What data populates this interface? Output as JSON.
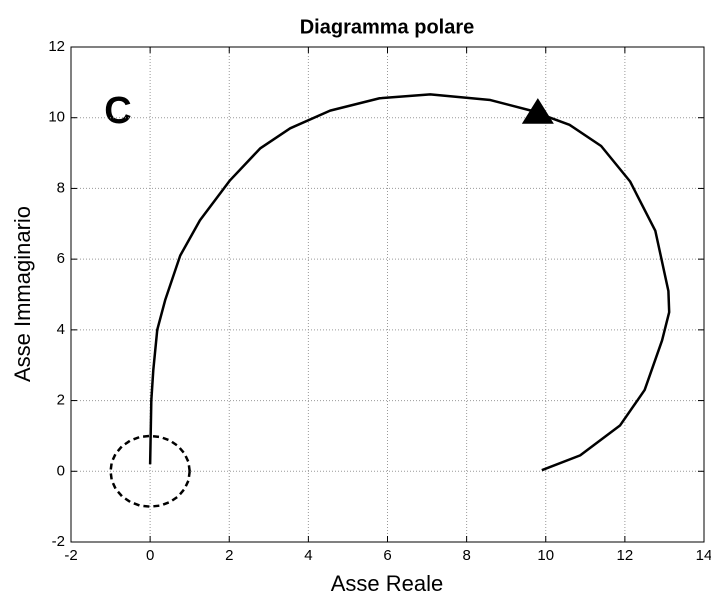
{
  "chart_data": {
    "type": "line",
    "title": "Diagramma polare",
    "xlabel": "Asse Reale",
    "ylabel": "Asse Immaginario",
    "annotation": "C",
    "xlim": [
      -2,
      14
    ],
    "ylim": [
      -2,
      12
    ],
    "xticks": [
      -2,
      0,
      2,
      4,
      6,
      8,
      10,
      12,
      14
    ],
    "yticks": [
      -2,
      0,
      2,
      4,
      6,
      8,
      10,
      12
    ],
    "grid": true,
    "series": [
      {
        "color": "#000000",
        "style": "solid",
        "x": [
          9.9,
          10.87,
          11.88,
          12.5,
          12.94,
          13.12,
          13.1,
          12.77,
          12.13,
          11.4,
          10.6,
          9.63,
          8.6,
          7.08,
          5.8,
          4.55,
          3.54,
          2.78,
          2.02,
          1.26,
          0.76,
          0.38,
          0.18,
          0.08,
          0.03,
          0
        ],
        "values": [
          0.03,
          0.45,
          1.3,
          2.3,
          3.7,
          4.5,
          5.1,
          6.8,
          8.2,
          9.2,
          9.8,
          10.2,
          10.5,
          10.66,
          10.55,
          10.2,
          9.7,
          9.13,
          8.23,
          7.1,
          6.1,
          4.84,
          4.0,
          2.86,
          2.0,
          0.2
        ]
      },
      {
        "color": "#000000",
        "style": "dashed",
        "x": [
          1,
          0.97,
          0.87,
          0.71,
          0.5,
          0.26,
          0,
          -0.26,
          -0.5,
          -0.71,
          -0.87,
          -0.97,
          -1,
          -0.97,
          -0.87,
          -0.71,
          -0.5,
          -0.26,
          0,
          0.26,
          0.5,
          0.71,
          0.87,
          0.97,
          1
        ],
        "values": [
          0,
          0.26,
          0.5,
          0.71,
          0.87,
          0.97,
          1,
          0.97,
          0.87,
          0.71,
          0.5,
          0.26,
          0,
          -0.26,
          -0.5,
          -0.71,
          -0.87,
          -0.97,
          -1,
          -0.97,
          -0.87,
          -0.71,
          -0.5,
          -0.26,
          0
        ]
      },
      {
        "color": "#000000",
        "style": "none",
        "marker": "triangle",
        "x": [
          9.8
        ],
        "values": [
          10.1
        ]
      }
    ]
  }
}
